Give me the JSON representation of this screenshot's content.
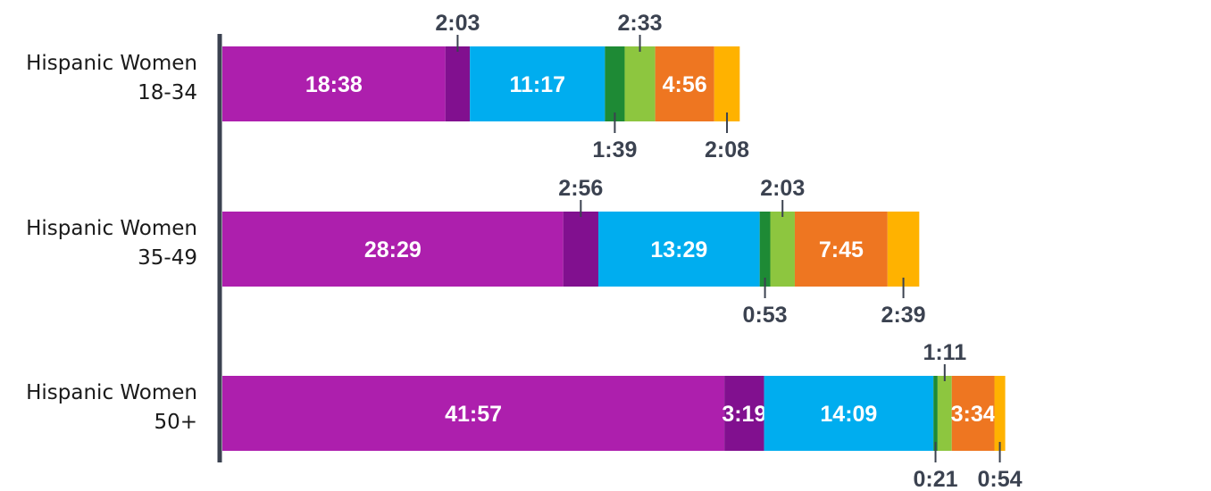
{
  "chart_data": {
    "type": "bar",
    "orientation": "horizontal",
    "stacked": true,
    "categories": [
      [
        "Hispanic Women",
        "18-34"
      ],
      [
        "Hispanic Women",
        "35-49"
      ],
      [
        "Hispanic Women",
        "50+"
      ]
    ],
    "segment_colors": [
      "#ad1fad",
      "#81108f",
      "#00adef",
      "#1e8a35",
      "#8dc63f",
      "#ee7621",
      "#ffb200"
    ],
    "rows": [
      {
        "segments": [
          "18:38",
          "2:03",
          "11:17",
          "1:39",
          "2:33",
          "4:56",
          "2:08"
        ],
        "label_position": [
          "inside",
          "above",
          "inside",
          "below",
          "above",
          "inside",
          "below"
        ]
      },
      {
        "segments": [
          "28:29",
          "2:56",
          "13:29",
          "0:53",
          "2:03",
          "7:45",
          "2:39"
        ],
        "label_position": [
          "inside",
          "above",
          "inside",
          "below",
          "above",
          "inside",
          "below"
        ]
      },
      {
        "segments": [
          "41:57",
          "3:19",
          "14:09",
          "0:21",
          "1:11",
          "3:34",
          "0:54"
        ],
        "label_position": [
          "inside",
          "inside",
          "inside",
          "below",
          "above",
          "inside",
          "below"
        ]
      }
    ],
    "legend": "none",
    "grid": false
  }
}
